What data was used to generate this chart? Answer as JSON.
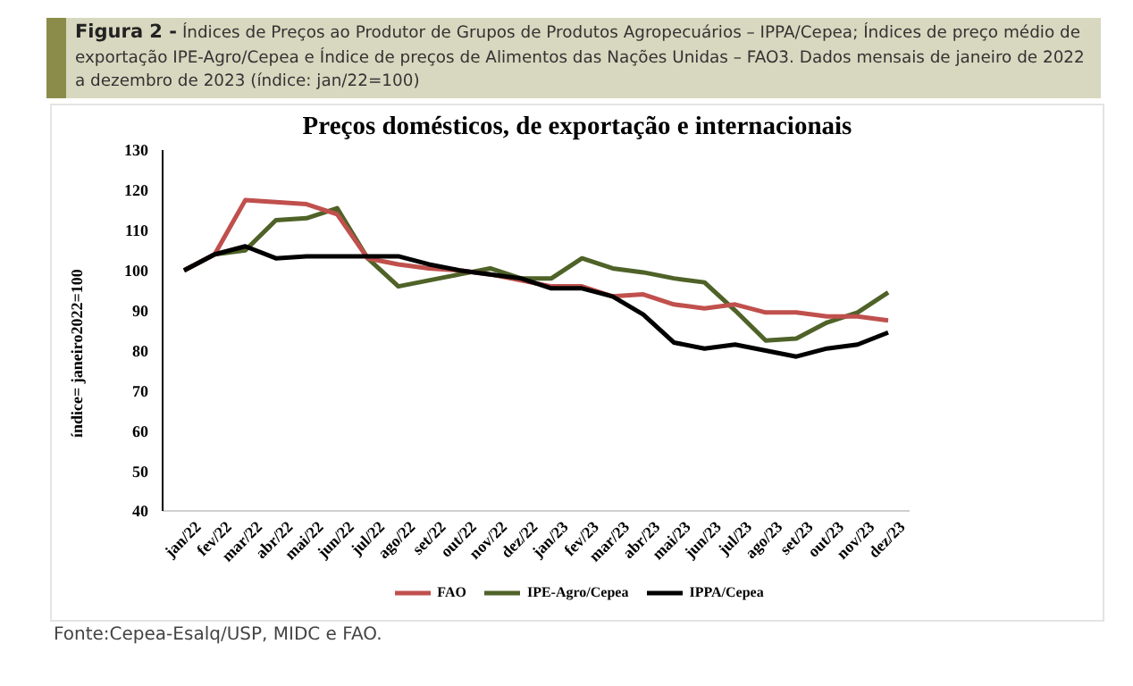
{
  "chart_data": {
    "type": "line",
    "title": "Preços domésticos, de exportação  e internacionais",
    "ylabel": "índice= janeiro2022=100",
    "categories": [
      "jan/22",
      "fev/22",
      "mar/22",
      "abr/22",
      "mai/22",
      "jun/22",
      "jul/22",
      "ago/22",
      "set/22",
      "out/22",
      "nov/22",
      "dez/22",
      "jan/23",
      "fev/23",
      "mar/23",
      "abr/23",
      "mai/23",
      "jun/23",
      "jul/23",
      "ago/23",
      "set/23",
      "out/23",
      "nov/23",
      "dez/23"
    ],
    "series": [
      {
        "name": "IPE-Agro/Cepea",
        "color": "#4f6228",
        "values": [
          100,
          104,
          105,
          112.5,
          113,
          115.5,
          103,
          96,
          97.5,
          99,
          100.5,
          98,
          98,
          103,
          100.5,
          99.5,
          98,
          97,
          90,
          82.5,
          83,
          87,
          89.5,
          94.5
        ]
      },
      {
        "name": "FAO",
        "color": "#c0504d",
        "values": [
          100,
          104,
          117.5,
          117,
          116.5,
          114,
          103,
          101.5,
          100.5,
          100,
          99,
          97.5,
          96,
          96,
          93.5,
          94,
          91.5,
          90.5,
          91.5,
          89.5,
          89.5,
          88.5,
          88.5,
          87.5
        ]
      },
      {
        "name": "IPPA/Cepea",
        "color": "#000000",
        "values": [
          100,
          104,
          106,
          103,
          103.5,
          103.5,
          103.5,
          103.5,
          101.5,
          100,
          99,
          98,
          95.5,
          95.5,
          93.5,
          89,
          82,
          80.5,
          81.5,
          80,
          78.5,
          80.5,
          81.5,
          84.5
        ]
      }
    ],
    "ylim": [
      40,
      130
    ],
    "yticks": [
      40,
      50,
      60,
      70,
      80,
      90,
      100,
      110,
      120,
      130
    ],
    "grid": false,
    "legend": "bottom",
    "marker": "none",
    "line_style": "solid",
    "annotations": [
      "Figura 2 -",
      "Índices de Preços ao Produtor de Grupos de Produtos Agropecuários – IPPA/Cepea; Índices de preço médio de exportação IPE-Agro/Cepea e Índice de preços de Alimentos das Nações Unidas – FAO3. Dados mensais de janeiro de 2022 a dezembro de 2023 (índice: jan/22=100)",
      "Fonte:Cepea-Esalq/USP, MIDC e FAO."
    ]
  }
}
